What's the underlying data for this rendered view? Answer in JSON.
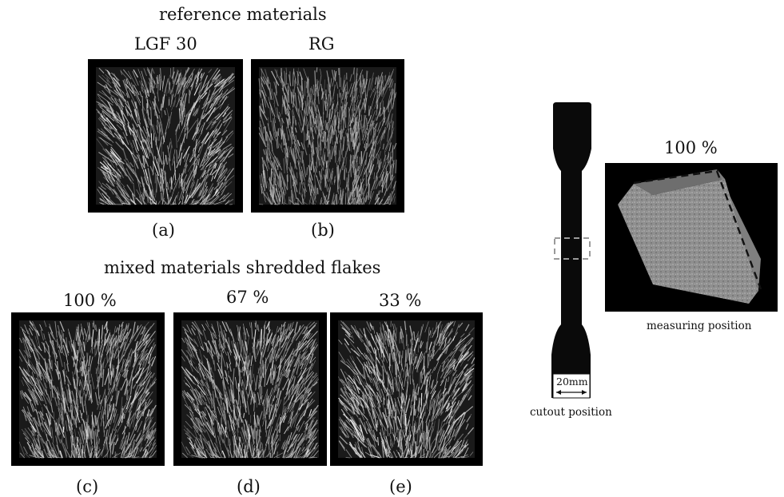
{
  "headings": {
    "reference": "reference materials",
    "mixed": "mixed materials shredded flakes"
  },
  "panels": {
    "a": {
      "label": "LGF 30",
      "caption": "(a)"
    },
    "b": {
      "label": "RG",
      "caption": "(b)"
    },
    "c": {
      "label": "100 %",
      "caption": "(c)"
    },
    "d": {
      "label": "67 %",
      "caption": "(d)"
    },
    "e": {
      "label": "33 %",
      "caption": "(e)"
    }
  },
  "specimen": {
    "width_label": "20mm",
    "caption": "cutout position"
  },
  "measurement": {
    "label": "100 %",
    "caption": "measuring position"
  }
}
